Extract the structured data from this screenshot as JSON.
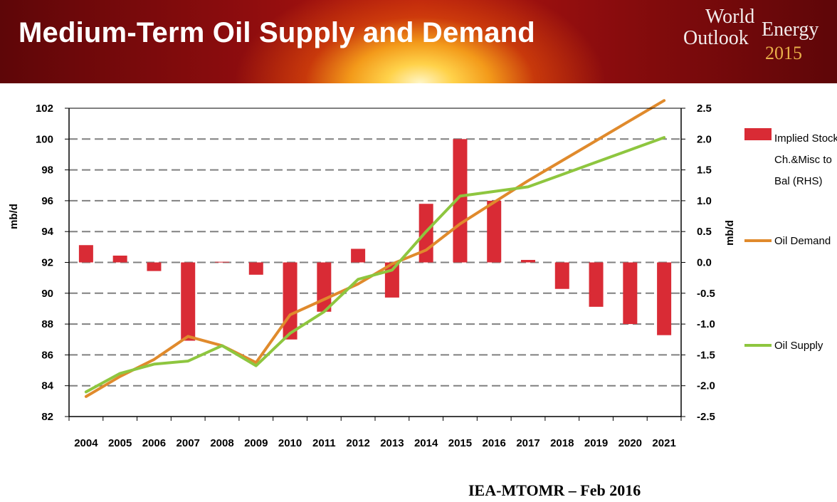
{
  "header": {
    "title": "Medium-Term Oil Supply and Demand",
    "logo": {
      "line1": "World",
      "line2": "Outlook",
      "line3": "Energy",
      "year": "2015"
    }
  },
  "source": "IEA-MTOMR – Feb 2016",
  "colors": {
    "bars": "#d92b35",
    "demand": "#e08a2c",
    "supply": "#8ec63f",
    "grid": "#808080"
  },
  "chart_data": {
    "type": "bar+line",
    "categories": [
      "2004",
      "2005",
      "2006",
      "2007",
      "2008",
      "2009",
      "2010",
      "2011",
      "2012",
      "2013",
      "2014",
      "2015",
      "2016",
      "2017",
      "2018",
      "2019",
      "2020",
      "2021"
    ],
    "ylabel": "mb/d",
    "ylabel_right": "mb/d",
    "ylim": [
      82,
      102
    ],
    "y_ticks": [
      82,
      84,
      86,
      88,
      90,
      92,
      94,
      96,
      98,
      100,
      102
    ],
    "ylim_right": [
      -2.5,
      2.5
    ],
    "y_ticks_right": [
      "-2.5",
      "-2.0",
      "-1.5",
      "-1.0",
      "-0.5",
      "0.0",
      "0.5",
      "1.0",
      "1.5",
      "2.0",
      "2.5"
    ],
    "grid": true,
    "legend_position": "right",
    "series": [
      {
        "name": "Implied Stock Ch.&Misc to Bal (RHS)",
        "legend_lines": [
          "Implied Stock",
          "Ch.&Misc to",
          "Bal (RHS)"
        ],
        "kind": "bar",
        "axis": "right",
        "values": [
          0.28,
          0.11,
          -0.14,
          -1.27,
          0.01,
          -0.2,
          -1.25,
          -0.8,
          0.22,
          -0.57,
          0.95,
          2.0,
          1.0,
          0.04,
          -0.43,
          -0.72,
          -1.0,
          -1.18
        ]
      },
      {
        "name": "Oil Demand",
        "kind": "line",
        "axis": "left",
        "values": [
          83.3,
          84.6,
          85.7,
          87.2,
          86.6,
          85.5,
          88.6,
          89.6,
          90.6,
          91.9,
          92.8,
          94.5,
          95.9,
          97.3,
          98.6,
          99.9,
          101.2,
          102.5
        ]
      },
      {
        "name": "Oil Supply",
        "kind": "line",
        "axis": "left",
        "values": [
          83.6,
          84.8,
          85.4,
          85.6,
          86.6,
          85.3,
          87.4,
          88.8,
          90.9,
          91.5,
          94.0,
          96.3,
          96.6,
          96.9,
          97.7,
          98.5,
          99.3,
          100.1
        ]
      }
    ]
  }
}
